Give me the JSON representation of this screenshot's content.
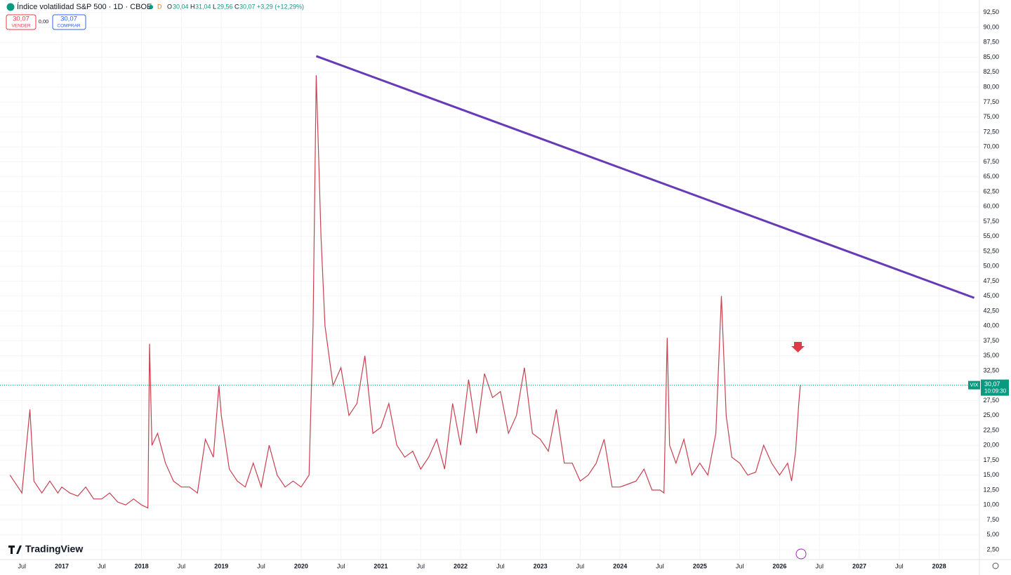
{
  "chart_data": {
    "type": "line",
    "title": "Índice volatilidad S&P 500 · 1D · CBOE",
    "interval_badge": "D",
    "ohlc": {
      "o_label": "O",
      "o": "30,04",
      "h_label": "H",
      "h": "31,04",
      "l_label": "L",
      "l": "29,56",
      "c_label": "C",
      "c": "30,07",
      "change": "+3,29 (+12,29%)"
    },
    "trade": {
      "sell_price": "30,07",
      "sell_label": "VENDER",
      "spread": "0,00",
      "buy_price": "30,07",
      "buy_label": "COMPRAR"
    },
    "brand": "TradingView",
    "x": [
      2016.35,
      2016.45,
      2016.5,
      2016.6,
      2016.65,
      2016.75,
      2016.85,
      2016.95,
      2017.0,
      2017.1,
      2017.2,
      2017.3,
      2017.4,
      2017.5,
      2017.6,
      2017.7,
      2017.8,
      2017.9,
      2018.0,
      2018.08,
      2018.1,
      2018.13,
      2018.2,
      2018.3,
      2018.4,
      2018.5,
      2018.6,
      2018.7,
      2018.8,
      2018.9,
      2018.97,
      2019.0,
      2019.1,
      2019.2,
      2019.3,
      2019.4,
      2019.5,
      2019.6,
      2019.7,
      2019.8,
      2019.9,
      2020.0,
      2020.1,
      2020.15,
      2020.19,
      2020.25,
      2020.3,
      2020.4,
      2020.5,
      2020.6,
      2020.7,
      2020.8,
      2020.9,
      2021.0,
      2021.1,
      2021.2,
      2021.3,
      2021.4,
      2021.5,
      2021.6,
      2021.7,
      2021.8,
      2021.9,
      2022.0,
      2022.1,
      2022.2,
      2022.3,
      2022.4,
      2022.5,
      2022.6,
      2022.7,
      2022.8,
      2022.9,
      2023.0,
      2023.1,
      2023.2,
      2023.3,
      2023.4,
      2023.5,
      2023.6,
      2023.7,
      2023.8,
      2023.9,
      2024.0,
      2024.1,
      2024.2,
      2024.3,
      2024.4,
      2024.5,
      2024.55,
      2024.59,
      2024.62,
      2024.7,
      2024.8,
      2024.9,
      2025.0,
      2025.1,
      2025.2,
      2025.27,
      2025.33,
      2025.4,
      2025.5,
      2025.6,
      2025.7,
      2025.8,
      2025.9,
      2026.0,
      2026.1,
      2026.15,
      2026.2,
      2026.24,
      2026.26
    ],
    "series": [
      {
        "name": "VIX",
        "color": "#c9404f",
        "values": [
          15,
          13,
          12,
          26,
          14,
          12,
          14,
          12,
          13,
          12,
          11.5,
          13,
          11,
          11,
          12,
          10.5,
          10,
          11,
          10,
          9.5,
          37,
          20,
          22,
          17,
          14,
          13,
          13,
          12,
          21,
          18,
          30,
          25,
          16,
          14,
          13,
          17,
          13,
          20,
          15,
          13,
          14,
          13,
          15,
          40,
          82,
          55,
          40,
          30,
          33,
          25,
          27,
          35,
          22,
          23,
          27,
          20,
          18,
          19,
          16,
          18,
          21,
          16,
          27,
          20,
          31,
          22,
          32,
          28,
          29,
          22,
          25,
          33,
          22,
          21,
          19,
          26,
          17,
          17,
          14,
          15,
          17,
          21,
          13,
          13,
          13.5,
          14,
          16,
          12.5,
          12.5,
          12,
          38,
          20,
          17,
          21,
          15,
          17,
          15,
          22,
          45,
          25,
          18,
          17,
          15,
          15.5,
          20,
          17,
          15,
          17,
          14,
          19,
          27,
          30.07
        ]
      }
    ],
    "trendline": {
      "x": [
        2020.19,
        2028.44
      ],
      "values": [
        85.2,
        44.7
      ],
      "color": "#673ab7"
    },
    "last_price": {
      "symbol": "VIX",
      "value": 30.07,
      "label": "30,07",
      "time": "10:09:30",
      "color": "#089981"
    },
    "xlim": [
      2016.225,
      2028.505
    ],
    "ylim": [
      0.5,
      94.6
    ],
    "grid": true,
    "xticks": [
      {
        "value": 2016.5,
        "label": "Jul"
      },
      2017,
      {
        "value": 2017.5,
        "label": "Jul"
      },
      2018,
      {
        "value": 2018.5,
        "label": "Jul"
      },
      2019,
      {
        "value": 2019.5,
        "label": "Jul"
      },
      2020,
      {
        "value": 2020.5,
        "label": "Jul"
      },
      2021,
      {
        "value": 2021.5,
        "label": "Jul"
      },
      2022,
      {
        "value": 2022.5,
        "label": "Jul"
      },
      2023,
      {
        "value": 2023.5,
        "label": "Jul"
      },
      2024,
      {
        "value": 2024.5,
        "label": "Jul"
      },
      2025,
      {
        "value": 2025.5,
        "label": "Jul"
      },
      2026,
      {
        "value": 2026.5,
        "label": "Jul"
      },
      2027,
      {
        "value": 2027.5,
        "label": "Jul"
      },
      2028
    ],
    "yticks": [
      {
        "value": 92.5,
        "label": "92,50"
      },
      {
        "value": 90,
        "label": "90,00"
      },
      {
        "value": 87.5,
        "label": "87,50"
      },
      {
        "value": 85,
        "label": "85,00"
      },
      {
        "value": 82.5,
        "label": "82,50"
      },
      {
        "value": 80,
        "label": "80,00"
      },
      {
        "value": 77.5,
        "label": "77,50"
      },
      {
        "value": 75,
        "label": "75,00"
      },
      {
        "value": 72.5,
        "label": "72,50"
      },
      {
        "value": 70,
        "label": "70,00"
      },
      {
        "value": 67.5,
        "label": "67,50"
      },
      {
        "value": 65,
        "label": "65,00"
      },
      {
        "value": 62.5,
        "label": "62,50"
      },
      {
        "value": 60,
        "label": "60,00"
      },
      {
        "value": 57.5,
        "label": "57,50"
      },
      {
        "value": 55,
        "label": "55,00"
      },
      {
        "value": 52.5,
        "label": "52,50"
      },
      {
        "value": 50,
        "label": "50,00"
      },
      {
        "value": 47.5,
        "label": "47,50"
      },
      {
        "value": 45,
        "label": "45,00"
      },
      {
        "value": 42.5,
        "label": "42,50"
      },
      {
        "value": 40,
        "label": "40,00"
      },
      {
        "value": 37.5,
        "label": "37,50"
      },
      {
        "value": 35,
        "label": "35,00"
      },
      {
        "value": 32.5,
        "label": "32,50"
      },
      {
        "value": 30,
        "label": "30,00"
      },
      {
        "value": 27.5,
        "label": "27,50"
      },
      {
        "value": 25,
        "label": "25,00"
      },
      {
        "value": 22.5,
        "label": "22,50"
      },
      {
        "value": 20,
        "label": "20,00"
      },
      {
        "value": 17.5,
        "label": "17,50"
      },
      {
        "value": 15,
        "label": "15,00"
      },
      {
        "value": 12.5,
        "label": "12,50"
      },
      {
        "value": 10,
        "label": "10,00"
      },
      {
        "value": 7.5,
        "label": "7,50"
      },
      {
        "value": 5,
        "label": "5,00"
      },
      {
        "value": 2.5,
        "label": "2,50"
      }
    ]
  }
}
